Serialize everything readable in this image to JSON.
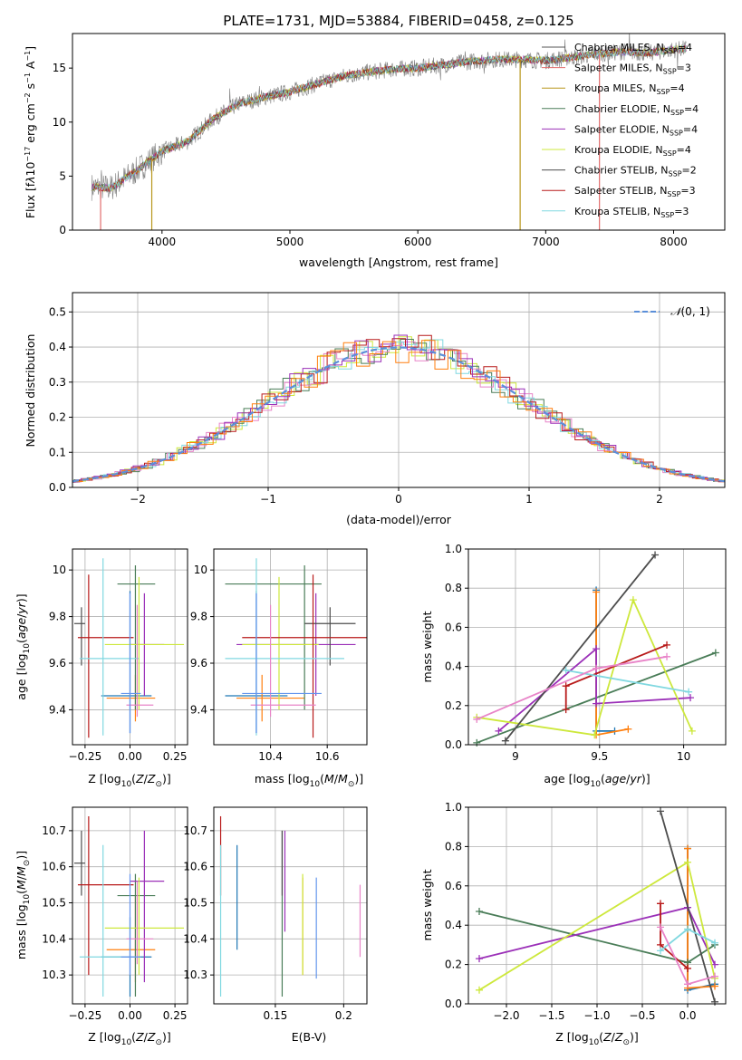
{
  "chart_data": [
    {
      "type": "line",
      "title": "PLATE=1731, MJD=53884, FIBERID=0458, z=0.125",
      "xlabel": "wavelength [Angstrom, rest frame]",
      "ylabel": "Flux [f_λ10^-17 erg cm^-2 s^-1 A^-1]",
      "xlim": [
        3300,
        8400
      ],
      "ylim": [
        0,
        18.2
      ],
      "xticks": [
        4000,
        5000,
        6000,
        7000,
        8000
      ],
      "yticks": [
        0,
        5,
        10,
        15
      ],
      "grid": false,
      "legend_position": "right",
      "observed": {
        "x": [
          3450,
          3600,
          3800,
          4000,
          4200,
          4400,
          4600,
          4800,
          5000,
          5200,
          5400,
          5600,
          5800,
          6000,
          6200,
          6400,
          6600,
          6800,
          7000,
          7200,
          7400,
          7600,
          7800,
          8000,
          8100
        ],
        "y": [
          4.0,
          3.9,
          5.5,
          7.3,
          8.2,
          10.3,
          11.7,
          12.3,
          12.8,
          13.5,
          14.2,
          14.6,
          14.9,
          15.0,
          15.3,
          15.6,
          15.8,
          15.8,
          15.7,
          16.0,
          16.3,
          16.5,
          16.4,
          16.7,
          16.8
        ]
      },
      "series": [
        {
          "name": "Chabrier MILES, N_SSP=4"
        },
        {
          "name": "Salpeter MILES, N_SSP=3"
        },
        {
          "name": "Kroupa MILES, N_SSP=4"
        },
        {
          "name": "Chabrier ELODIE, N_SSP=4"
        },
        {
          "name": "Salpeter ELODIE, N_SSP=4"
        },
        {
          "name": "Kroupa ELODIE, N_SSP=4"
        },
        {
          "name": "Chabrier STELIB, N_SSP=2"
        },
        {
          "name": "Salpeter STELIB, N_SSP=3"
        },
        {
          "name": "Kroupa STELIB, N_SSP=3"
        }
      ],
      "legend_entries": [
        {
          "base": "Chabrier MILES, N",
          "sub": "SSP",
          "tail": "=4"
        },
        {
          "base": "Salpeter MILES, N",
          "sub": "SSP",
          "tail": "=3"
        },
        {
          "base": "Kroupa MILES, N",
          "sub": "SSP",
          "tail": "=4"
        },
        {
          "base": "Chabrier ELODIE, N",
          "sub": "SSP",
          "tail": "=4"
        },
        {
          "base": "Salpeter ELODIE, N",
          "sub": "SSP",
          "tail": "=4"
        },
        {
          "base": "Kroupa ELODIE, N",
          "sub": "SSP",
          "tail": "=4"
        },
        {
          "base": "Chabrier STELIB, N",
          "sub": "SSP",
          "tail": "=2"
        },
        {
          "base": "Salpeter STELIB, N",
          "sub": "SSP",
          "tail": "=3"
        },
        {
          "base": "Kroupa STELIB, N",
          "sub": "SSP",
          "tail": "=3"
        }
      ]
    },
    {
      "type": "area",
      "xlabel": "(data-model)/error",
      "ylabel": "Normed distribution",
      "xlim": [
        -2.5,
        2.5
      ],
      "ylim": [
        0,
        0.555
      ],
      "xticks": [
        -2,
        -1,
        0,
        1,
        2
      ],
      "xtick_labels": [
        "−2",
        "−1",
        "0",
        "1",
        "2"
      ],
      "yticks": [
        0.0,
        0.1,
        0.2,
        0.3,
        0.4,
        0.5
      ],
      "grid": true,
      "legend": "N(0, 1)",
      "legend_position": "top-right"
    },
    {
      "type": "scatter",
      "xlabel": "Z [log10(Z/Z⊙)]",
      "ylabel": "age [log10(age/yr)]",
      "xlim": [
        -0.32,
        0.32
      ],
      "ylim": [
        9.25,
        10.09
      ],
      "xticks": [
        -0.25,
        0.0,
        0.25
      ],
      "xtick_labels": [
        "−0.25",
        "0.00",
        "0.25"
      ],
      "yticks": [
        9.4,
        9.6,
        9.8,
        10.0
      ],
      "grid": true
    },
    {
      "type": "scatter",
      "xlabel": "mass [log10(M/M⊙)]",
      "ylabel": "",
      "xlim": [
        10.2,
        10.74
      ],
      "ylim": [
        9.25,
        10.09
      ],
      "xticks": [
        10.4,
        10.6
      ],
      "yticks": [
        9.4,
        9.6,
        9.8,
        10.0
      ],
      "grid": true
    },
    {
      "type": "line",
      "xlabel": "age [log10(age/yr)]",
      "ylabel": "mass weight",
      "xlim": [
        8.72,
        10.25
      ],
      "ylim": [
        0,
        1
      ],
      "xticks": [
        9.0,
        9.5,
        10.0
      ],
      "yticks": [
        0.0,
        0.2,
        0.4,
        0.6,
        0.8,
        1.0
      ],
      "grid": true
    },
    {
      "type": "scatter",
      "xlabel": "Z [log10(Z/Z⊙)]",
      "ylabel": "mass [log10(M/M⊙)]",
      "xlim": [
        -0.32,
        0.32
      ],
      "ylim": [
        10.22,
        10.765
      ],
      "xticks": [
        -0.25,
        0.0,
        0.25
      ],
      "xtick_labels": [
        "−0.25",
        "0.00",
        "0.25"
      ],
      "yticks": [
        10.3,
        10.4,
        10.5,
        10.6,
        10.7
      ],
      "grid": true
    },
    {
      "type": "scatter",
      "xlabel": "E(B-V)",
      "ylabel": "",
      "xlim": [
        0.105,
        0.217
      ],
      "ylim": [
        10.22,
        10.765
      ],
      "xticks": [
        0.15,
        0.2
      ],
      "yticks": [
        10.3,
        10.4,
        10.5,
        10.6,
        10.7
      ],
      "grid": true
    },
    {
      "type": "line",
      "xlabel": "Z [log10(Z/Z⊙)]",
      "ylabel": "mass weight",
      "xlim": [
        -2.42,
        0.42
      ],
      "ylim": [
        0,
        1
      ],
      "xticks": [
        -2.0,
        -1.5,
        -1.0,
        -0.5,
        0.0
      ],
      "xtick_labels": [
        "−2.0",
        "−1.5",
        "−1.0",
        "−0.5",
        "0.0"
      ],
      "yticks": [
        0.0,
        0.2,
        0.4,
        0.6,
        0.8,
        1.0
      ],
      "grid": true
    }
  ],
  "models": [
    {
      "color": "#1f77b4",
      "z": 0.0,
      "age": 9.46,
      "mass": 10.35,
      "ebv": 0.122,
      "z_err": [
        -0.16,
        0.12
      ],
      "age_err": [
        9.3,
        9.91
      ],
      "mass_err": [
        10.24,
        10.46
      ],
      "ebv_err": [
        10.37,
        10.66
      ],
      "age_w": [
        [
          9.48,
          0.79
        ],
        [
          9.48,
          0.07
        ],
        [
          9.59,
          0.07
        ]
      ],
      "z_w": [
        [
          0.0,
          0.79
        ],
        [
          0.0,
          0.07
        ],
        [
          0.3,
          0.1
        ]
      ]
    },
    {
      "color": "#ff7f0e",
      "z": 0.03,
      "age": 9.45,
      "mass": 10.37,
      "ebv": 0.17,
      "z_err": [
        -0.13,
        0.14
      ],
      "age_err": [
        9.35,
        9.55
      ],
      "mass_err": [
        10.28,
        10.52
      ],
      "ebv_err": [
        10.3,
        10.57
      ],
      "age_w": [
        [
          9.48,
          0.78
        ],
        [
          9.48,
          0.05
        ],
        [
          9.67,
          0.08
        ]
      ],
      "z_w": [
        [
          0.0,
          0.79
        ],
        [
          0.0,
          0.08
        ],
        [
          0.3,
          0.09
        ]
      ]
    },
    {
      "color": "#1a2e6e",
      "z": 0.0,
      "age": 9.45,
      "mass": 10.37,
      "ebv": 0.16,
      "hidden": true,
      "z_err": [
        0,
        0
      ],
      "age_err": [
        9.45,
        9.45
      ],
      "mass_err": [
        10.37,
        10.37
      ],
      "ebv_err": [
        10.37,
        10.37
      ],
      "age_w": [],
      "z_w": []
    },
    {
      "color": "#4a7d58",
      "z": 0.03,
      "age": 9.94,
      "mass": 10.52,
      "ebv": 0.155,
      "z_err": [
        -0.07,
        0.14
      ],
      "age_err": [
        9.4,
        10.02
      ],
      "mass_err": [
        10.24,
        10.58
      ],
      "ebv_err": [
        10.24,
        10.7
      ],
      "age_w": [
        [
          8.77,
          0.01
        ],
        [
          10.19,
          0.47
        ]
      ],
      "z_w": [
        [
          -2.3,
          0.47
        ],
        [
          0.0,
          0.21
        ],
        [
          0.3,
          0.3
        ]
      ]
    },
    {
      "color": "#9b30b8",
      "z": 0.08,
      "age": 9.68,
      "mass": 10.56,
      "ebv": 0.157,
      "z_err": [
        0.0,
        0.19
      ],
      "age_err": [
        9.46,
        9.9
      ],
      "mass_err": [
        10.28,
        10.7
      ],
      "ebv_err": [
        10.42,
        10.7
      ],
      "age_w": [
        [
          8.9,
          0.07
        ],
        [
          9.48,
          0.49
        ],
        [
          9.48,
          0.21
        ],
        [
          10.04,
          0.24
        ]
      ],
      "z_w": [
        [
          -2.3,
          0.23
        ],
        [
          0.0,
          0.49
        ],
        [
          0.3,
          0.2
        ]
      ]
    },
    {
      "color": "#cde83c",
      "z": 0.05,
      "age": 9.68,
      "mass": 10.43,
      "ebv": 0.17,
      "z_err": [
        -0.14,
        0.3
      ],
      "age_err": [
        9.4,
        9.97
      ],
      "mass_err": [
        10.3,
        10.57
      ],
      "ebv_err": [
        10.3,
        10.58
      ],
      "age_w": [
        [
          8.77,
          0.14
        ],
        [
          9.47,
          0.05
        ],
        [
          9.7,
          0.74
        ],
        [
          10.05,
          0.07
        ]
      ],
      "z_w": [
        [
          -2.3,
          0.07
        ],
        [
          0.0,
          0.72
        ],
        [
          0.3,
          0.13
        ]
      ]
    },
    {
      "color": "#4d4d4d",
      "z": -0.27,
      "age": 9.77,
      "mass": 10.61,
      "ebv": 0.155,
      "z_err": [
        -0.31,
        -0.25
      ],
      "age_err": [
        9.59,
        9.84
      ],
      "mass_err": [
        10.52,
        10.7
      ],
      "ebv_err": [
        10.52,
        10.7
      ],
      "age_w": [
        [
          8.94,
          0.02
        ],
        [
          9.83,
          0.97
        ]
      ],
      "z_w": [
        [
          -0.3,
          0.98
        ],
        [
          0.3,
          0.01
        ]
      ]
    },
    {
      "color": "#b81a1a",
      "z": -0.23,
      "age": 9.71,
      "mass": 10.55,
      "ebv": 0.11,
      "z_err": [
        -0.29,
        0.02
      ],
      "age_err": [
        9.28,
        9.98
      ],
      "mass_err": [
        10.3,
        10.74
      ],
      "ebv_err": [
        10.52,
        10.74
      ],
      "age_w": [
        [
          9.3,
          0.18
        ],
        [
          9.3,
          0.3
        ],
        [
          9.9,
          0.51
        ]
      ],
      "z_w": [
        [
          -0.3,
          0.51
        ],
        [
          -0.3,
          0.3
        ],
        [
          0.0,
          0.18
        ]
      ]
    },
    {
      "color": "#80d8e0",
      "z": -0.15,
      "age": 9.62,
      "mass": 10.35,
      "ebv": 0.11,
      "z_err": [
        -0.28,
        0.05
      ],
      "age_err": [
        9.29,
        10.05
      ],
      "mass_err": [
        10.24,
        10.66
      ],
      "ebv_err": [
        10.24,
        10.66
      ],
      "age_w": [
        [
          9.3,
          0.38
        ],
        [
          10.03,
          0.27
        ]
      ],
      "z_w": [
        [
          -0.3,
          0.27
        ],
        [
          0.0,
          0.38
        ],
        [
          0.3,
          0.31
        ]
      ]
    },
    {
      "color": "#e884c8",
      "z": 0.04,
      "age": 9.42,
      "mass": 10.4,
      "ebv": 0.212,
      "z_err": [
        -0.02,
        0.13
      ],
      "age_err": [
        9.37,
        9.85
      ],
      "mass_err": [
        10.33,
        10.56
      ],
      "ebv_err": [
        10.35,
        10.55
      ],
      "age_w": [
        [
          8.77,
          0.13
        ],
        [
          9.48,
          0.39
        ],
        [
          9.9,
          0.45
        ]
      ],
      "z_w": [
        [
          -0.3,
          0.39
        ],
        [
          0.0,
          0.1
        ],
        [
          0.3,
          0.14
        ]
      ]
    },
    {
      "color": "#6495ed",
      "z": 0.0,
      "age": 9.47,
      "mass": 10.35,
      "ebv": 0.18,
      "z_err": [
        -0.05,
        0.06
      ],
      "age_err": [
        9.3,
        9.9
      ],
      "mass_err": [
        10.3,
        10.58
      ],
      "ebv_err": [
        10.29,
        10.57
      ],
      "age_w": [],
      "z_w": []
    }
  ],
  "hist_colors": [
    "#cde83c",
    "#4a7d58",
    "#e884c8",
    "#80d8e0",
    "#b81a1a",
    "#9b30b8",
    "#ff7f0e"
  ],
  "colors": {
    "observed": "#7f7f7f",
    "normal_curve": "#5b8fd9",
    "series": [
      "#555555",
      "#e36d6d",
      "#b8961b",
      "#4a7d58",
      "#9b30b8",
      "#cde83c",
      "#4d4d4d",
      "#b81a1a",
      "#80d8e0"
    ]
  }
}
